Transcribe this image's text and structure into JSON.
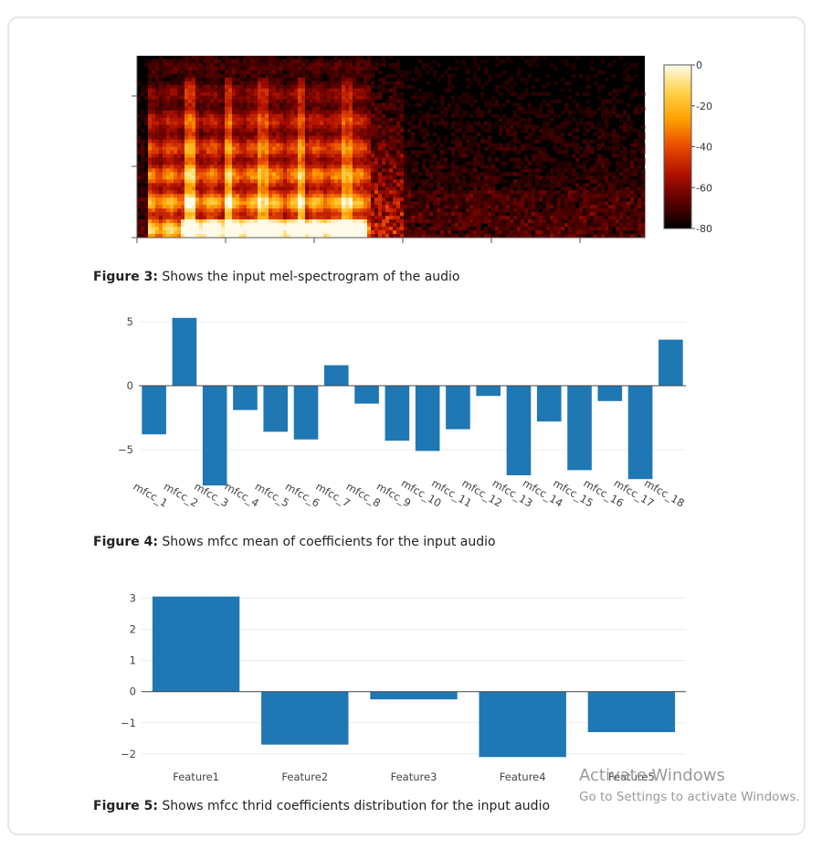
{
  "chart_data": [
    {
      "type": "heatmap",
      "colorbar": {
        "tick_labels": [
          "0",
          "-20",
          "-40",
          "-60",
          "-80"
        ],
        "range": [
          -80,
          0
        ],
        "colors": [
          "#000000",
          "#5a0000",
          "#b01000",
          "#e84a00",
          "#ffa000",
          "#ffd24a",
          "#fffbe8"
        ]
      },
      "caption": {
        "label": "Figure 3:",
        "text": " Shows the input mel-spectrogram of the audio"
      }
    },
    {
      "type": "bar",
      "categories": [
        "mfcc_1",
        "mfcc_2",
        "mfcc_3",
        "mfcc_4",
        "mfcc_5",
        "mfcc_6",
        "mfcc_7",
        "mfcc_8",
        "mfcc_9",
        "mfcc_10",
        "mfcc_11",
        "mfcc_12",
        "mfcc_13",
        "mfcc_14",
        "mfcc_15",
        "mfcc_16",
        "mfcc_17",
        "mfcc_18"
      ],
      "values": [
        -3.8,
        5.3,
        -7.8,
        -1.9,
        -3.6,
        -4.2,
        1.6,
        -1.4,
        -4.3,
        -5.1,
        -3.4,
        -0.8,
        -7.0,
        -2.8,
        -6.6,
        -1.2,
        -7.3,
        3.6
      ],
      "ylim": [
        -8,
        6
      ],
      "yticks": [
        5,
        0,
        -5
      ],
      "grid": true,
      "bar_color": "#1f77b4",
      "caption": {
        "label": "Figure 4:",
        "text": " Shows mfcc mean of coefficients for the input audio"
      }
    },
    {
      "type": "bar",
      "categories": [
        "Feature1",
        "Feature2",
        "Feature3",
        "Feature4",
        "Feature5"
      ],
      "values": [
        3.05,
        -1.7,
        -0.25,
        -2.1,
        -1.3
      ],
      "ylim": [
        -2.15,
        3.1
      ],
      "yticks": [
        3,
        2,
        1,
        0,
        -1,
        -2
      ],
      "grid": true,
      "bar_color": "#1f77b4",
      "caption": {
        "label": "Figure 5:",
        "text": " Shows mfcc thrid coefficients distribution for the input audio"
      }
    }
  ],
  "watermark": {
    "title": "Activate Windows",
    "subtitle": "Go to Settings to activate Windows."
  }
}
